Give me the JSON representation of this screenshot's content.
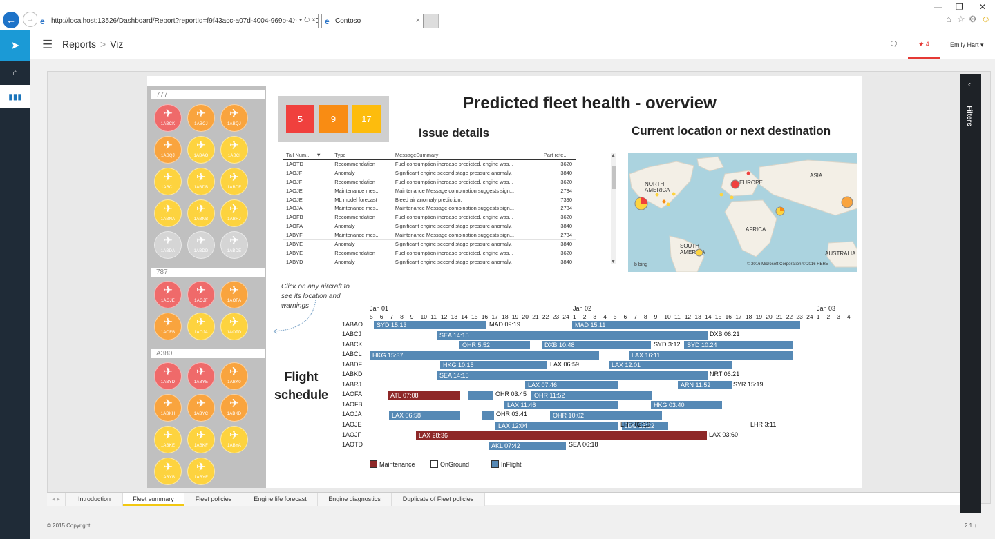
{
  "browser": {
    "url": "http://localhost:13526/Dashboard/Report?reportId=f9f43acc-a07d-4004-969b-4134e2301",
    "tab_title": "Contoso",
    "tab_close": "×",
    "addr_controls": "⌕ ▾ ↻ ×"
  },
  "topbar": {
    "breadcrumb_root": "Reports",
    "breadcrumb_sep": ">",
    "breadcrumb_current": "Viz",
    "notifications_count": "4",
    "user_name": "Emily Hart ▾"
  },
  "filters_label": "Filters",
  "fleet_groups": [
    {
      "name": "777",
      "planes": [
        {
          "tail": "1ABCK",
          "status": "red"
        },
        {
          "tail": "1ABCJ",
          "status": "orange"
        },
        {
          "tail": "1ABQJ",
          "status": "orange"
        },
        {
          "tail": "1ABQJ",
          "status": "orange"
        },
        {
          "tail": "1ABAO",
          "status": "yellow"
        },
        {
          "tail": "1ABCI",
          "status": "yellow"
        },
        {
          "tail": "1ABCL",
          "status": "yellow"
        },
        {
          "tail": "1ABDB",
          "status": "yellow"
        },
        {
          "tail": "1ABDF",
          "status": "yellow"
        },
        {
          "tail": "1ABNA",
          "status": "yellow"
        },
        {
          "tail": "1ABNB",
          "status": "yellow"
        },
        {
          "tail": "1ABRJ",
          "status": "yellow"
        },
        {
          "tail": "1ABDA",
          "status": "grey"
        },
        {
          "tail": "1ABDD",
          "status": "grey"
        },
        {
          "tail": "1ABDE",
          "status": "grey"
        }
      ]
    },
    {
      "name": "787",
      "planes": [
        {
          "tail": "1AOJE",
          "status": "red"
        },
        {
          "tail": "1AOJF",
          "status": "red"
        },
        {
          "tail": "1AOFA",
          "status": "orange"
        },
        {
          "tail": "1AOFB",
          "status": "orange"
        },
        {
          "tail": "1AOJA",
          "status": "yellow"
        },
        {
          "tail": "1AOTD",
          "status": "yellow"
        }
      ]
    },
    {
      "name": "A380",
      "planes": [
        {
          "tail": "1ABYD",
          "status": "red"
        },
        {
          "tail": "1ABYE",
          "status": "red"
        },
        {
          "tail": "1ABK0",
          "status": "orange"
        },
        {
          "tail": "1ABKH",
          "status": "orange"
        },
        {
          "tail": "1ABYC",
          "status": "orange"
        },
        {
          "tail": "1ABKD",
          "status": "orange"
        },
        {
          "tail": "1ABKE",
          "status": "yellow"
        },
        {
          "tail": "1ABKF",
          "status": "yellow"
        },
        {
          "tail": "1ABYA",
          "status": "yellow"
        },
        {
          "tail": "1ABYB",
          "status": "yellow"
        },
        {
          "tail": "1ABYF",
          "status": "yellow"
        }
      ]
    }
  ],
  "kpis": {
    "red": "5",
    "orange": "9",
    "yellow": "17"
  },
  "report_title": "Predicted fleet health - overview",
  "issue_title": "Issue details",
  "location_title": "Current location or next destination",
  "issue_table": {
    "headers": [
      "Tail Num...",
      "Type",
      "MessageSummary",
      "Part refe..."
    ],
    "rows": [
      [
        "1AOTD",
        "Recommendation",
        "Fuel consumption increase predicted, engine was...",
        "3620"
      ],
      [
        "1AOJF",
        "Anomaly",
        "Significant engine second stage pressure anomaly.",
        "3840"
      ],
      [
        "1AOJF",
        "Recommendation",
        "Fuel consumption increase predicted, engine was...",
        "3620"
      ],
      [
        "1AOJE",
        "Maintenance mes...",
        "Maintenance Message combination suggests sign...",
        "2784"
      ],
      [
        "1AOJE",
        "ML model forecast",
        "Bleed air anomaly prediction.",
        "7390"
      ],
      [
        "1AOJA",
        "Maintenance mes...",
        "Maintenance Message combination suggests sign...",
        "2784"
      ],
      [
        "1AOFB",
        "Recommendation",
        "Fuel consumption increase predicted, engine was...",
        "3620"
      ],
      [
        "1AOFA",
        "Anomaly",
        "Significant engine second stage pressure anomaly.",
        "3840"
      ],
      [
        "1ABYF",
        "Maintenance mes...",
        "Maintenance Message combination suggests sign...",
        "2784"
      ],
      [
        "1ABYE",
        "Anomaly",
        "Significant engine second stage pressure anomaly.",
        "3840"
      ],
      [
        "1ABYE",
        "Recommendation",
        "Fuel consumption increase predicted, engine was...",
        "3620"
      ],
      [
        "1ABYD",
        "Anomaly",
        "Significant engine second stage pressure anomaly.",
        "3840"
      ]
    ]
  },
  "map": {
    "labels": {
      "na": "NORTH AMERICA",
      "eu": "EUROPE",
      "asia": "ASIA",
      "africa": "AFRICA",
      "sa": "SOUTH AMERICA",
      "au": "AUSTRALIA"
    },
    "credit": "© 2016 Microsoft Corporation    © 2016 HERE",
    "bing": "b bing"
  },
  "click_note": "Click on any aircraft to see its location and warnings",
  "flight_title": "Flight schedule",
  "gantt": {
    "date_labels": [
      "Jan 01",
      "Jan 02",
      "Jan 03"
    ],
    "hour_ticks": "5  6  7  8  9  10 11 12 13 14 15 16 17 18 19 20 21 22 23 24  1  2  3  4  5  6  7  8  9 10 11 12 13 14 15 16 17 18 19 20 21 22 23 24  1  2  3  4",
    "rows": [
      {
        "tail": "1ABAO",
        "bars": [
          {
            "t": "inflight",
            "label": "SYD 15:13"
          },
          {
            "t": "inflight",
            "label": "MAD 15:11"
          }
        ],
        "ends": [
          "MAD 09:19"
        ]
      },
      {
        "tail": "1ABCJ",
        "bars": [
          {
            "t": "inflight",
            "label": "SEA 14:15"
          }
        ],
        "ends": [
          "DXB 06:21"
        ]
      },
      {
        "tail": "1ABCK",
        "bars": [
          {
            "t": "inflight",
            "label": "OHR 5:52"
          },
          {
            "t": "inflight",
            "label": "DXB 10:48"
          },
          {
            "t": "inflight",
            "label": "SYD 10:24"
          }
        ],
        "ends": [
          "SYD 3:12"
        ]
      },
      {
        "tail": "1ABCL",
        "bars": [
          {
            "t": "inflight",
            "label": "HKG 15:37"
          },
          {
            "t": "inflight",
            "label": "LAX 16:11"
          }
        ],
        "ends": []
      },
      {
        "tail": "1ABDF",
        "bars": [
          {
            "t": "inflight",
            "label": "HKG 10:15"
          },
          {
            "t": "inflight",
            "label": "LAX 12:01"
          }
        ],
        "ends": [
          "LAX 06:59"
        ]
      },
      {
        "tail": "1ABKD",
        "bars": [
          {
            "t": "inflight",
            "label": "SEA 14:15"
          }
        ],
        "ends": [
          "NRT 06:21"
        ]
      },
      {
        "tail": "1ABRJ",
        "bars": [
          {
            "t": "inflight",
            "label": "LAX 07:46"
          },
          {
            "t": "inflight",
            "label": "ARN 11:52"
          }
        ],
        "ends": [
          "SYR 15:19"
        ]
      },
      {
        "tail": "1AOFA",
        "bars": [
          {
            "t": "maint",
            "label": "ATL 07:08"
          },
          {
            "t": "inflight",
            "label": ""
          },
          {
            "t": "inflight",
            "label": "OHR 11:52"
          }
        ],
        "ends": [
          "OHR 03:45"
        ]
      },
      {
        "tail": "1AOFB",
        "bars": [
          {
            "t": "inflight",
            "label": "LAX 11:46"
          },
          {
            "t": "inflight",
            "label": "HKG 03:40"
          }
        ],
        "ends": []
      },
      {
        "tail": "1AOJA",
        "bars": [
          {
            "t": "inflight",
            "label": "LAX 06:58"
          },
          {
            "t": "inflight",
            "label": ""
          },
          {
            "t": "inflight",
            "label": "OHR 10:02"
          }
        ],
        "ends": [
          "OHR 03:41"
        ]
      },
      {
        "tail": "1AOJE",
        "bars": [
          {
            "t": "inflight",
            "label": "LAX 12:04"
          },
          {
            "t": "inflight",
            "label": "JDG 13:22"
          }
        ],
        "ends": [
          "LHR 02:10",
          "LHR 3:11"
        ]
      },
      {
        "tail": "1AOJF",
        "bars": [
          {
            "t": "maint",
            "label": "LAX 28:36"
          }
        ],
        "ends": [
          "LAX 03:60"
        ]
      },
      {
        "tail": "1AOTD",
        "bars": [
          {
            "t": "inflight",
            "label": "AKL 07:42"
          }
        ],
        "ends": [
          "SEA 06:18"
        ]
      }
    ],
    "legend": [
      "Maintenance",
      "OnGround",
      "InFlight"
    ],
    "colors": {
      "inflight": "#5689b5",
      "maintenance": "#8e2828"
    }
  },
  "page_tabs": [
    "Introduction",
    "Fleet summary",
    "Fleet policies",
    "Engine life forecast",
    "Engine diagnostics",
    "Duplicate of Fleet policies"
  ],
  "active_tab": "Fleet summary",
  "footer": "© 2015 Copyright.",
  "version": "2.1 ↑"
}
